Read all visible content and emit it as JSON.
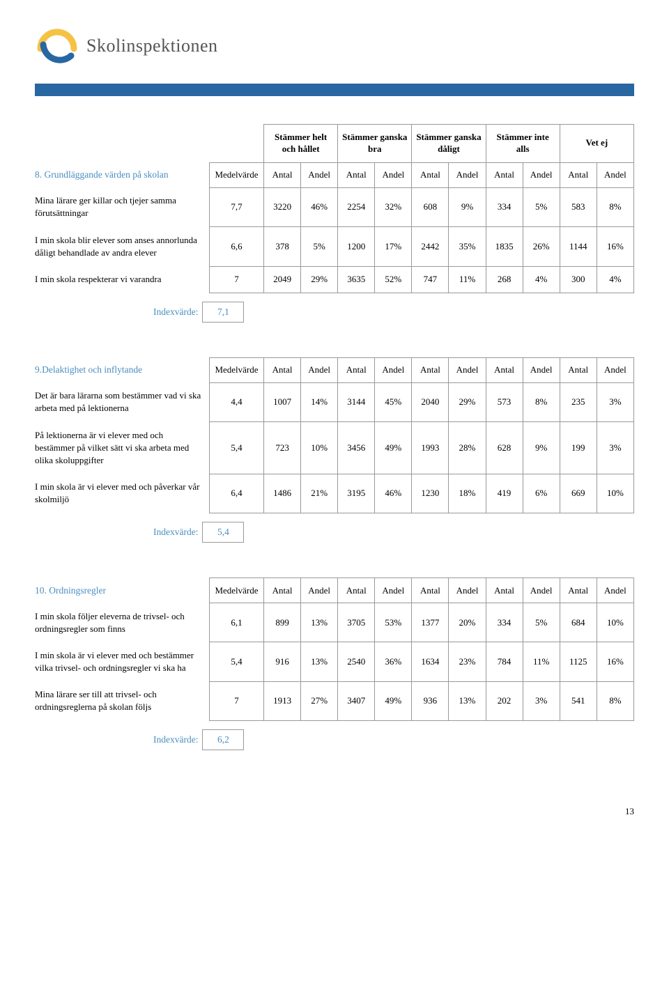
{
  "logo_text": "Skolinspektionen",
  "page_number": "13",
  "index_label": "Indexvärde:",
  "col_pair": {
    "antal": "Antal",
    "andel": "Andel"
  },
  "medel_label": "Medelvärde",
  "top_headers": [
    "Stämmer helt och hållet",
    "Stämmer ganska bra",
    "Stämmer ganska dåligt",
    "Stämmer inte alls",
    "Vet ej"
  ],
  "sections": [
    {
      "title": "8. Grundläggande värden på skolan",
      "index": "7,1",
      "rows": [
        {
          "label": "Mina lärare ger killar och tjejer samma förutsättningar",
          "medel": "7,7",
          "cells": [
            "3220",
            "46%",
            "2254",
            "32%",
            "608",
            "9%",
            "334",
            "5%",
            "583",
            "8%"
          ]
        },
        {
          "label": "I min skola blir elever som anses annorlunda dåligt behandlade av andra elever",
          "medel": "6,6",
          "cells": [
            "378",
            "5%",
            "1200",
            "17%",
            "2442",
            "35%",
            "1835",
            "26%",
            "1144",
            "16%"
          ]
        },
        {
          "label": "I min skola respekterar vi varandra",
          "medel": "7",
          "cells": [
            "2049",
            "29%",
            "3635",
            "52%",
            "747",
            "11%",
            "268",
            "4%",
            "300",
            "4%"
          ]
        }
      ]
    },
    {
      "title": "9.Delaktighet och inflytande",
      "index": "5,4",
      "rows": [
        {
          "label": "Det är bara lärarna som bestämmer vad vi ska arbeta med på lektionerna",
          "medel": "4,4",
          "cells": [
            "1007",
            "14%",
            "3144",
            "45%",
            "2040",
            "29%",
            "573",
            "8%",
            "235",
            "3%"
          ]
        },
        {
          "label": "På lektionerna är vi elever med och bestämmer på vilket sätt vi ska arbeta med olika skoluppgifter",
          "medel": "5,4",
          "cells": [
            "723",
            "10%",
            "3456",
            "49%",
            "1993",
            "28%",
            "628",
            "9%",
            "199",
            "3%"
          ]
        },
        {
          "label": "I min skola är vi elever med och påverkar vår skolmiljö",
          "medel": "6,4",
          "cells": [
            "1486",
            "21%",
            "3195",
            "46%",
            "1230",
            "18%",
            "419",
            "6%",
            "669",
            "10%"
          ]
        }
      ]
    },
    {
      "title": "10. Ordningsregler",
      "index": "6,2",
      "rows": [
        {
          "label": "I min skola följer eleverna de trivsel- och ordningsregler som finns",
          "medel": "6,1",
          "cells": [
            "899",
            "13%",
            "3705",
            "53%",
            "1377",
            "20%",
            "334",
            "5%",
            "684",
            "10%"
          ]
        },
        {
          "label": "I min skola är vi elever med och bestämmer vilka trivsel- och ordningsregler vi ska ha",
          "medel": "5,4",
          "cells": [
            "916",
            "13%",
            "2540",
            "36%",
            "1634",
            "23%",
            "784",
            "11%",
            "1125",
            "16%"
          ]
        },
        {
          "label": "Mina lärare ser till att trivsel- och ordningsreglerna på skolan följs",
          "medel": "7",
          "cells": [
            "1913",
            "27%",
            "3407",
            "49%",
            "936",
            "13%",
            "202",
            "3%",
            "541",
            "8%"
          ]
        }
      ]
    }
  ]
}
